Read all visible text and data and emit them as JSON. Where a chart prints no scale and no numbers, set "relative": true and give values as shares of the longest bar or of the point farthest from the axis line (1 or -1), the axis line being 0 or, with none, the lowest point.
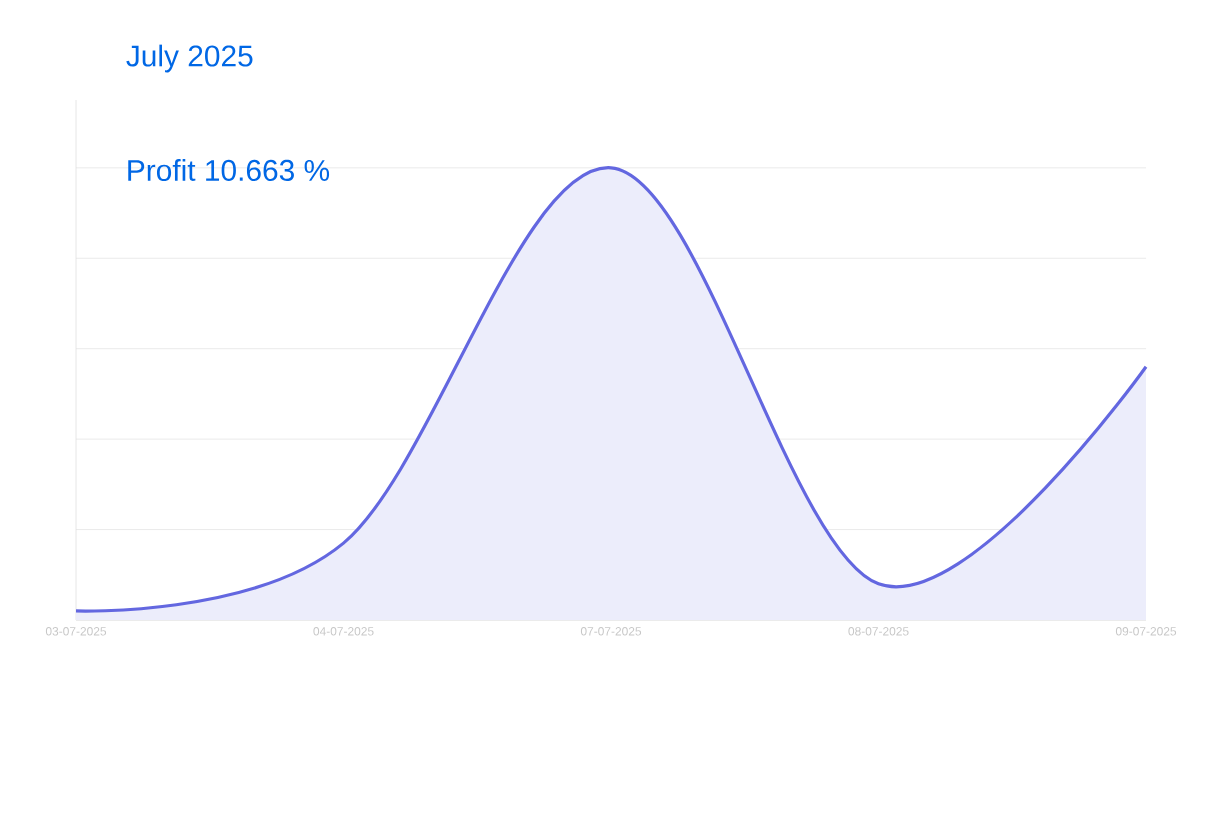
{
  "chart_data": {
    "type": "area",
    "title": "July 2025",
    "subtitle": "Profit 10.663 %",
    "categories": [
      "03-07-2025",
      "04-07-2025",
      "07-07-2025",
      "08-07-2025",
      "09-07-2025"
    ],
    "relative": true,
    "series": [
      {
        "color": "#6367e0",
        "values": [
          0.02,
          0.17,
          1,
          0.08,
          0.56
        ]
      }
    ],
    "grid": "y"
  }
}
